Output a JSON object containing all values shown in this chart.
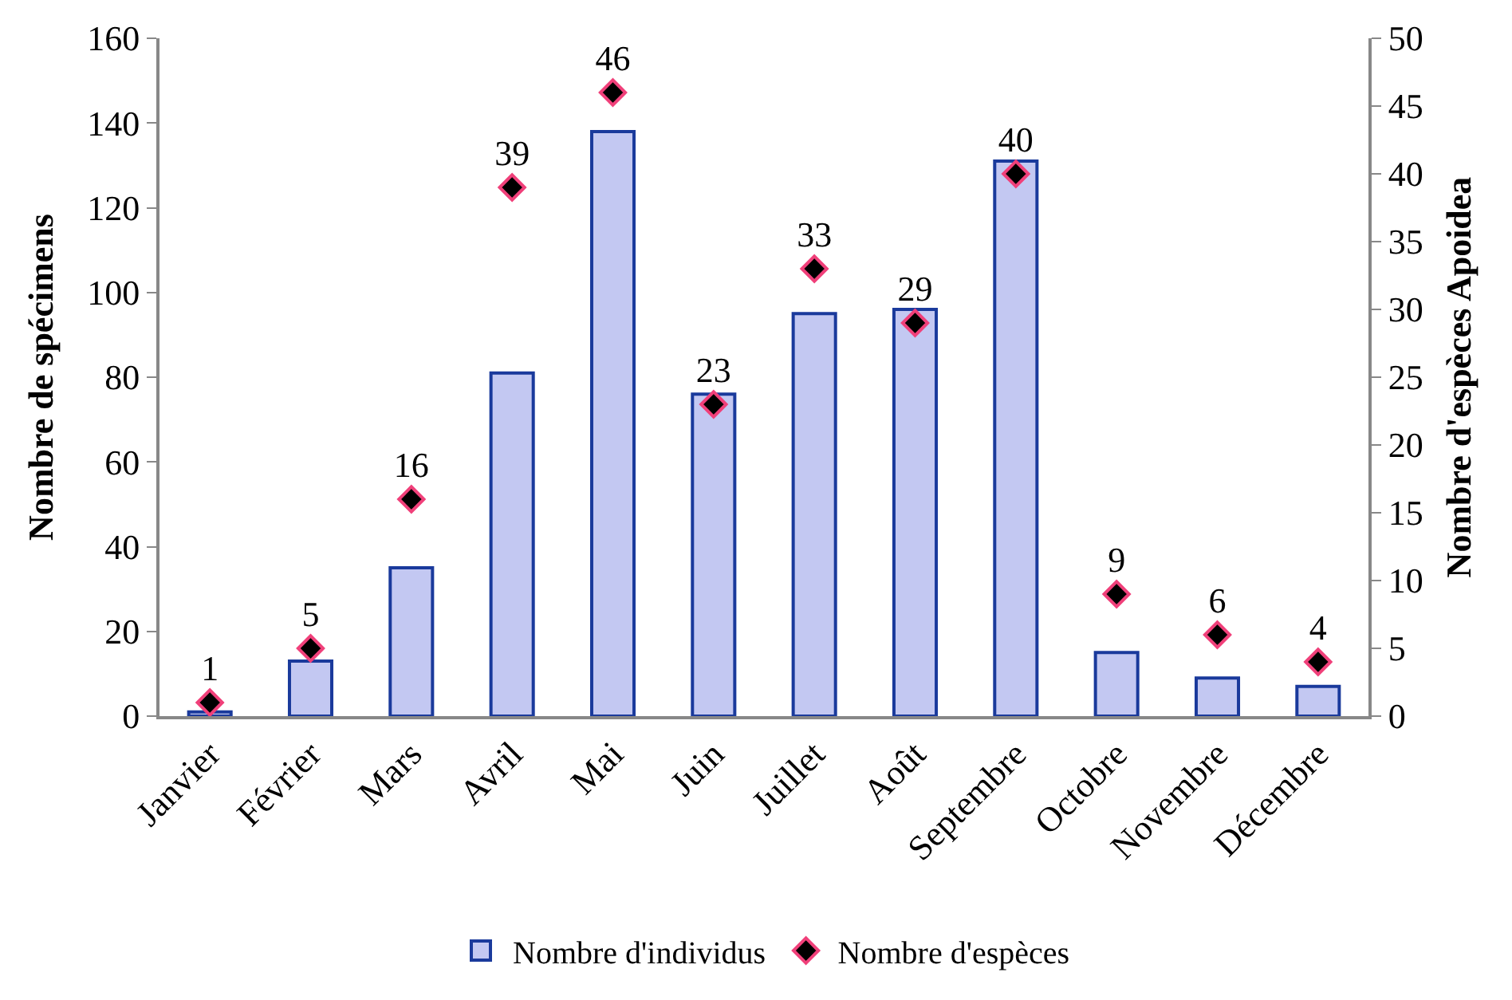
{
  "chart_data": {
    "type": "bar",
    "ylabel": "Nombre de spécimens",
    "y2label": "Nombre d'espèces Apoidea",
    "categories": [
      "Janvier",
      "Février",
      "Mars",
      "Avril",
      "Mai",
      "Juin",
      "Juillet",
      "Août",
      "Septembre",
      "Octobre",
      "Novembre",
      "Décembre"
    ],
    "series": [
      {
        "name": "Nombre d'individus",
        "color": "#c3c8f2",
        "values": [
          1,
          13,
          35,
          81,
          138,
          76,
          95,
          96,
          131,
          15,
          9,
          7
        ]
      },
      {
        "name": "Nombre d'espèces",
        "type": "scatter",
        "axis": "y2",
        "marker": "diamond",
        "color": "#000000",
        "data_labels": true,
        "values": [
          1,
          5,
          16,
          39,
          46,
          23,
          33,
          29,
          40,
          9,
          6,
          4
        ]
      }
    ],
    "ylim": [
      0,
      160
    ],
    "yticks": [
      0,
      20,
      40,
      60,
      80,
      100,
      120,
      140,
      160
    ],
    "y2lim": [
      0,
      50
    ],
    "y2ticks": [
      0,
      5,
      10,
      15,
      20,
      25,
      30,
      35,
      40,
      45,
      50
    ],
    "legend": "bottom"
  }
}
